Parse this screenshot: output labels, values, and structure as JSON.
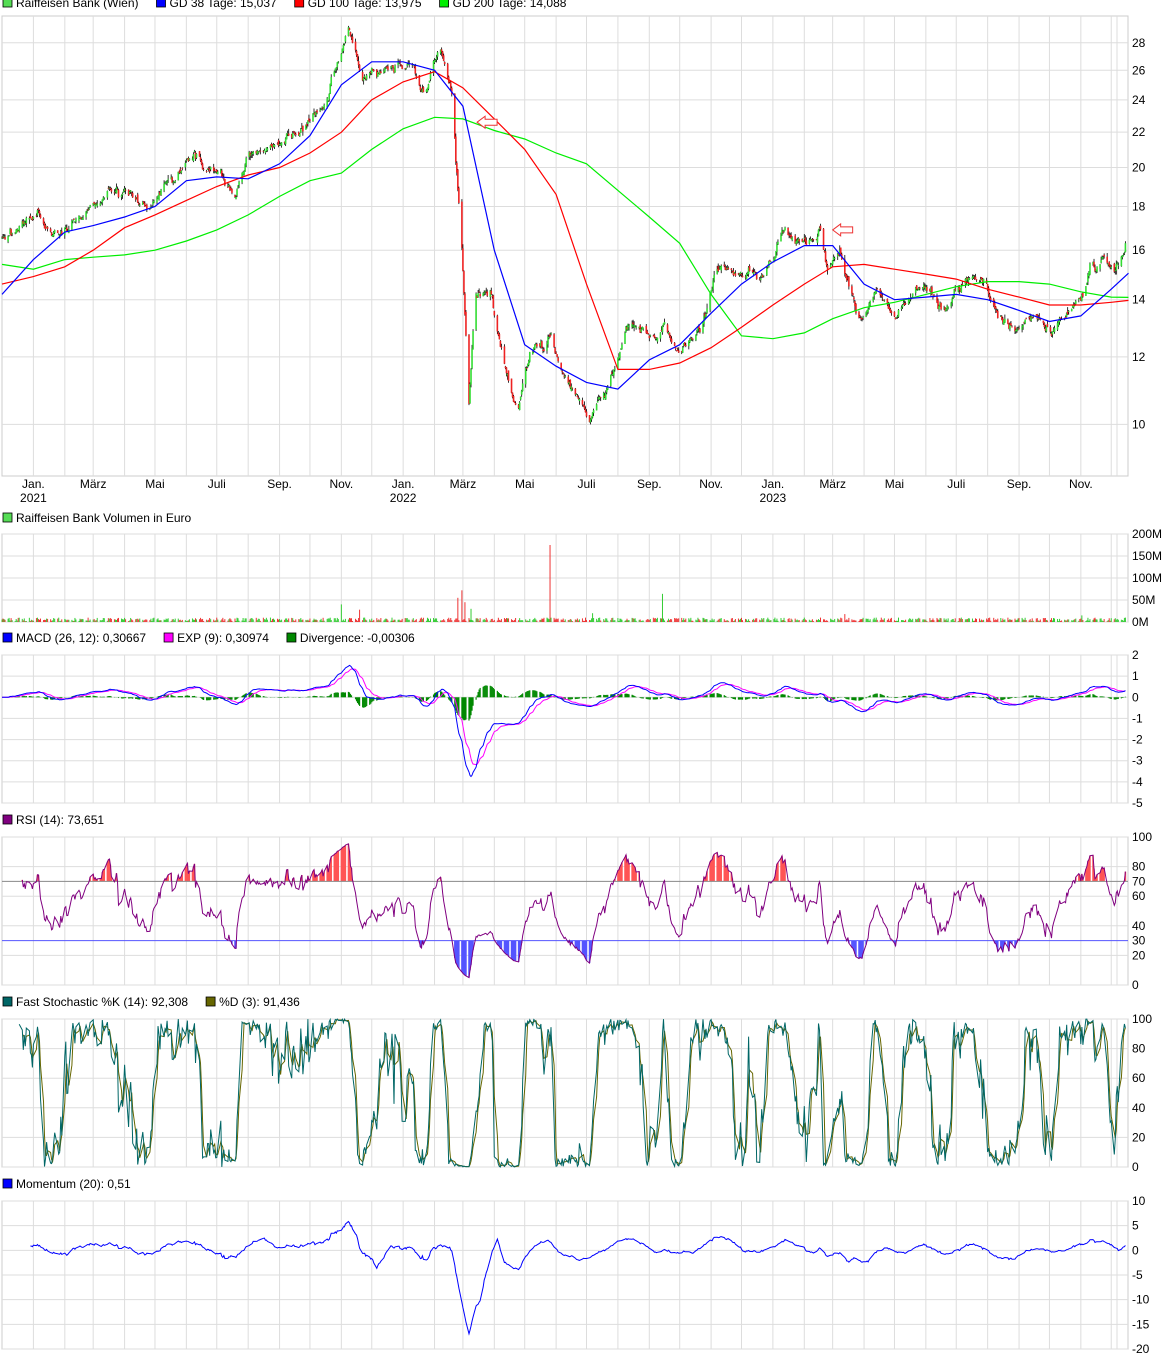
{
  "legends": {
    "price": [
      {
        "label": "Raiffeisen Bank (Wien)",
        "color": "#55dd55"
      },
      {
        "label": "GD 38 Tage: 15,037",
        "color": "#0000ff"
      },
      {
        "label": "GD 100 Tage: 13,975",
        "color": "#ff0000"
      },
      {
        "label": "GD 200 Tage: 14,088",
        "color": "#00ee00"
      }
    ],
    "volume": [
      {
        "label": "Raiffeisen Bank Volumen in Euro",
        "color": "#55dd55"
      }
    ],
    "macd": [
      {
        "label": "MACD (26, 12): 0,30667",
        "color": "#0000ff"
      },
      {
        "label": "EXP (9): 0,30974",
        "color": "#ff00ff"
      },
      {
        "label": "Divergence: -0,00306",
        "color": "#008800"
      }
    ],
    "rsi": [
      {
        "label": "RSI (14): 73,651",
        "color": "#800080"
      }
    ],
    "stoch": [
      {
        "label": "Fast Stochastic %K (14): 92,308",
        "color": "#006666"
      },
      {
        "label": "%D (3): 91,436",
        "color": "#666600"
      }
    ],
    "momentum": [
      {
        "label": "Momentum (20): 0,51",
        "color": "#0000ff"
      }
    ]
  },
  "x_axis": {
    "months": [
      {
        "date": "2021-01-01",
        "label": "Jan.",
        "year": "2021"
      },
      {
        "date": "2021-03-01",
        "label": "März"
      },
      {
        "date": "2021-05-01",
        "label": "Mai"
      },
      {
        "date": "2021-07-01",
        "label": "Juli"
      },
      {
        "date": "2021-09-01",
        "label": "Sep."
      },
      {
        "date": "2021-11-01",
        "label": "Nov."
      },
      {
        "date": "2022-01-01",
        "label": "Jan.",
        "year": "2022"
      },
      {
        "date": "2022-03-01",
        "label": "März"
      },
      {
        "date": "2022-05-01",
        "label": "Mai"
      },
      {
        "date": "2022-07-01",
        "label": "Juli"
      },
      {
        "date": "2022-09-01",
        "label": "Sep."
      },
      {
        "date": "2022-11-01",
        "label": "Nov."
      },
      {
        "date": "2023-01-01",
        "label": "Jan.",
        "year": "2023"
      },
      {
        "date": "2023-03-01",
        "label": "März"
      },
      {
        "date": "2023-05-01",
        "label": "Mai"
      },
      {
        "date": "2023-07-01",
        "label": "Juli"
      },
      {
        "date": "2023-09-01",
        "label": "Sep."
      },
      {
        "date": "2023-11-01",
        "label": "Nov."
      }
    ],
    "range": [
      "2020-12-01",
      "2023-12-18"
    ]
  },
  "chart_data": [
    {
      "type": "candlestick",
      "name": "Raiffeisen Bank (Wien)",
      "scale": "log",
      "ylim": [
        8.7,
        30.1
      ],
      "yticks": [
        "10",
        "12",
        "14",
        "16",
        "18",
        "20",
        "22",
        "24",
        "26",
        "28"
      ],
      "grid": true,
      "close": [
        [
          "2020-12-01",
          16.7
        ],
        [
          "2021-01-07",
          17.6
        ],
        [
          "2021-01-27",
          16.5
        ],
        [
          "2021-03-08",
          18.3
        ],
        [
          "2021-04-01",
          18.9
        ],
        [
          "2021-04-26",
          18.1
        ],
        [
          "2021-06-05",
          20.7
        ],
        [
          "2021-06-29",
          19.6
        ],
        [
          "2021-07-19",
          18.6
        ],
        [
          "2021-08-03",
          20.7
        ],
        [
          "2021-09-11",
          21.6
        ],
        [
          "2021-10-01",
          22.7
        ],
        [
          "2021-10-21",
          24.7
        ],
        [
          "2021-11-08",
          29.0
        ],
        [
          "2021-11-24",
          25.7
        ],
        [
          "2021-12-19",
          26.0
        ],
        [
          "2022-01-08",
          26.8
        ],
        [
          "2022-01-23",
          24.4
        ],
        [
          "2022-02-06",
          27.8
        ],
        [
          "2022-02-18",
          24.0
        ],
        [
          "2022-02-28",
          16.0
        ],
        [
          "2022-03-07",
          10.4
        ],
        [
          "2022-03-13",
          14.0
        ],
        [
          "2022-03-28",
          14.4
        ],
        [
          "2022-04-12",
          11.6
        ],
        [
          "2022-04-24",
          10.3
        ],
        [
          "2022-05-06",
          12.1
        ],
        [
          "2022-05-26",
          12.4
        ],
        [
          "2022-06-10",
          11.3
        ],
        [
          "2022-07-04",
          10.1
        ],
        [
          "2022-07-24",
          11.1
        ],
        [
          "2022-08-13",
          13.3
        ],
        [
          "2022-09-02",
          12.6
        ],
        [
          "2022-09-16",
          13.1
        ],
        [
          "2022-10-01",
          12.1
        ],
        [
          "2022-10-21",
          12.9
        ],
        [
          "2022-11-05",
          15.2
        ],
        [
          "2022-11-30",
          15.0
        ],
        [
          "2022-12-19",
          14.8
        ],
        [
          "2023-01-13",
          17.1
        ],
        [
          "2023-01-28",
          16.2
        ],
        [
          "2023-02-16",
          16.7
        ],
        [
          "2023-02-24",
          15.0
        ],
        [
          "2023-03-08",
          16.0
        ],
        [
          "2023-03-26",
          13.3
        ],
        [
          "2023-04-12",
          14.4
        ],
        [
          "2023-05-02",
          13.6
        ],
        [
          "2023-05-21",
          14.4
        ],
        [
          "2023-06-15",
          13.8
        ],
        [
          "2023-07-15",
          15.0
        ],
        [
          "2023-07-29",
          14.6
        ],
        [
          "2023-08-13",
          13.3
        ],
        [
          "2023-08-28",
          12.9
        ],
        [
          "2023-09-17",
          13.3
        ],
        [
          "2023-10-02",
          12.9
        ],
        [
          "2023-10-21",
          13.6
        ],
        [
          "2023-10-31",
          14.0
        ],
        [
          "2023-11-10",
          15.2
        ],
        [
          "2023-11-25",
          15.8
        ],
        [
          "2023-12-05",
          15.3
        ],
        [
          "2023-12-15",
          16.2
        ]
      ],
      "moving_averages": {
        "dates": [
          "2020-12-01",
          "2021-01-01",
          "2021-02-01",
          "2021-03-01",
          "2021-04-01",
          "2021-05-01",
          "2021-06-01",
          "2021-07-01",
          "2021-08-01",
          "2021-09-01",
          "2021-10-01",
          "2021-11-01",
          "2021-12-01",
          "2022-01-01",
          "2022-02-01",
          "2022-03-01",
          "2022-04-01",
          "2022-05-01",
          "2022-06-01",
          "2022-07-01",
          "2022-08-01",
          "2022-09-01",
          "2022-10-01",
          "2022-11-01",
          "2022-12-01",
          "2023-01-01",
          "2023-02-01",
          "2023-03-01",
          "2023-04-01",
          "2023-05-01",
          "2023-06-01",
          "2023-07-01",
          "2023-08-01",
          "2023-09-01",
          "2023-10-01",
          "2023-11-01",
          "2023-12-01",
          "2023-12-18"
        ],
        "series": [
          {
            "name": "GD 200 Tage",
            "color": "#00ee00",
            "values": [
              15.4,
              15.2,
              15.6,
              15.7,
              15.8,
              16.0,
              16.4,
              16.9,
              17.6,
              18.5,
              19.3,
              19.7,
              21.0,
              22.2,
              22.9,
              22.8,
              22.1,
              21.6,
              20.8,
              20.2,
              18.8,
              17.5,
              16.3,
              14.2,
              12.7,
              12.6,
              12.8,
              13.3,
              13.7,
              13.9,
              14.2,
              14.5,
              14.7,
              14.7,
              14.6,
              14.3,
              14.1,
              14.088
            ]
          },
          {
            "name": "GD 100 Tage",
            "color": "#ff0000",
            "values": [
              14.6,
              14.9,
              15.3,
              16.0,
              17.0,
              17.6,
              18.3,
              19.0,
              19.6,
              20.0,
              20.8,
              22.0,
              24.0,
              25.2,
              25.9,
              24.8,
              22.8,
              21.0,
              18.6,
              14.6,
              11.6,
              11.6,
              11.8,
              12.3,
              13.0,
              13.8,
              14.6,
              15.3,
              15.4,
              15.2,
              15.0,
              14.8,
              14.4,
              14.1,
              13.8,
              13.8,
              13.9,
              13.975
            ]
          },
          {
            "name": "GD 38 Tage",
            "color": "#0000ff",
            "values": [
              14.2,
              15.6,
              16.8,
              17.1,
              17.5,
              18.0,
              19.3,
              19.5,
              19.4,
              20.2,
              21.8,
              25.0,
              26.6,
              26.6,
              26.0,
              23.6,
              16.0,
              12.4,
              11.7,
              11.2,
              11.0,
              11.9,
              12.4,
              13.5,
              14.6,
              15.5,
              16.2,
              16.2,
              14.6,
              14.0,
              14.1,
              14.2,
              14.0,
              13.6,
              13.2,
              13.4,
              14.4,
              15.037
            ]
          }
        ]
      },
      "annotations": [
        {
          "type": "arrow-left",
          "date": "2022-03-15",
          "value": 22.6
        },
        {
          "type": "arrow-left",
          "date": "2023-03-01",
          "value": 16.9
        }
      ]
    },
    {
      "type": "bar",
      "name": "Raiffeisen Bank Volumen in Euro",
      "ylim": [
        0,
        200000000
      ],
      "yticks": [
        "0M",
        "50M",
        "100M",
        "150M",
        "200M"
      ],
      "spikes": [
        [
          "2021-11-02",
          40000000
        ],
        [
          "2021-11-20",
          28000000
        ],
        [
          "2022-02-25",
          55000000
        ],
        [
          "2022-03-01",
          72000000
        ],
        [
          "2022-03-04",
          45000000
        ],
        [
          "2022-03-10",
          30000000
        ],
        [
          "2022-05-27",
          175000000
        ],
        [
          "2022-09-15",
          64000000
        ],
        [
          "2022-07-08",
          20000000
        ],
        [
          "2023-03-14",
          18000000
        ],
        [
          "2023-11-03",
          15000000
        ]
      ]
    },
    {
      "type": "line",
      "name": "MACD",
      "ylim": [
        -5,
        2
      ],
      "yticks": [
        "-5",
        "-4",
        "-3",
        "-2",
        "-1",
        "0",
        "1",
        "2"
      ],
      "colors": {
        "macd": "#0000ff",
        "signal": "#ff00ff",
        "divergence": "#008800"
      }
    },
    {
      "type": "line",
      "name": "RSI",
      "ylim": [
        0,
        100
      ],
      "yticks": [
        "0",
        "20",
        "40",
        "60",
        "80",
        "100"
      ],
      "levels": [
        {
          "value": "70",
          "color": "#ff5555"
        },
        {
          "value": "30",
          "color": "#5555ff"
        }
      ],
      "color": "#800080"
    },
    {
      "type": "line",
      "name": "Fast Stochastic",
      "ylim": [
        0,
        100
      ],
      "yticks": [
        "0",
        "20",
        "40",
        "60",
        "80",
        "100"
      ],
      "colors": {
        "k": "#006666",
        "d": "#666600"
      }
    },
    {
      "type": "line",
      "name": "Momentum",
      "ylim": [
        -20,
        10
      ],
      "yticks": [
        "-20",
        "-15",
        "-10",
        "-5",
        "0",
        "5",
        "10"
      ],
      "color": "#0000ff"
    }
  ]
}
